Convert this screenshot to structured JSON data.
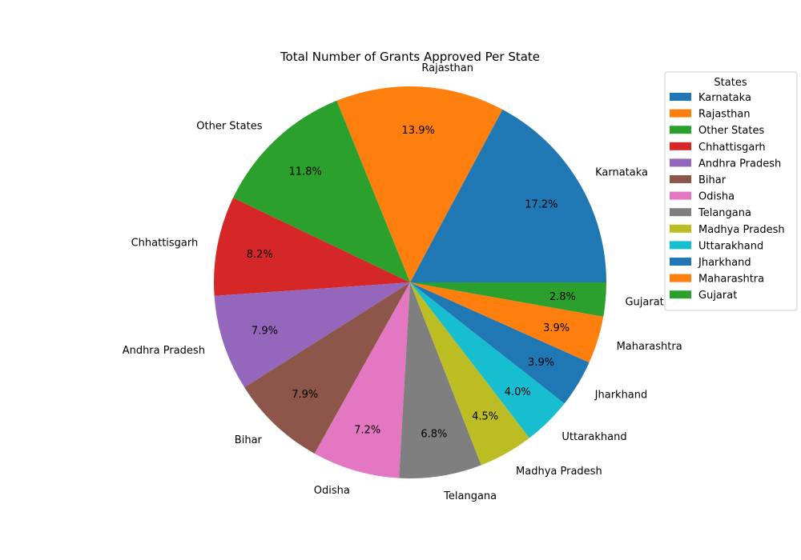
{
  "chart_data": {
    "type": "pie",
    "title": "Total Number of Grants Approved Per State",
    "legend_title": "States",
    "legend_position": "right",
    "start_angle_deg": 0,
    "direction": "counterclockwise",
    "slices": [
      {
        "label": "Karnataka",
        "value": 17.2,
        "pct_label": "17.2%",
        "color": "#1f77b4"
      },
      {
        "label": "Rajasthan",
        "value": 13.9,
        "pct_label": "13.9%",
        "color": "#ff7f0e"
      },
      {
        "label": "Other States",
        "value": 11.8,
        "pct_label": "11.8%",
        "color": "#2ca02c"
      },
      {
        "label": "Chhattisgarh",
        "value": 8.2,
        "pct_label": "8.2%",
        "color": "#d62728"
      },
      {
        "label": "Andhra Pradesh",
        "value": 7.9,
        "pct_label": "7.9%",
        "color": "#9467bd"
      },
      {
        "label": "Bihar",
        "value": 7.9,
        "pct_label": "7.9%",
        "color": "#8c564b"
      },
      {
        "label": "Odisha",
        "value": 7.2,
        "pct_label": "7.2%",
        "color": "#e377c2"
      },
      {
        "label": "Telangana",
        "value": 6.8,
        "pct_label": "6.8%",
        "color": "#7f7f7f"
      },
      {
        "label": "Madhya Pradesh",
        "value": 4.5,
        "pct_label": "4.5%",
        "color": "#bcbd22"
      },
      {
        "label": "Uttarakhand",
        "value": 4.0,
        "pct_label": "4.0%",
        "color": "#17becf"
      },
      {
        "label": "Jharkhand",
        "value": 3.9,
        "pct_label": "3.9%",
        "color": "#1f77b4"
      },
      {
        "label": "Maharashtra",
        "value": 3.9,
        "pct_label": "3.9%",
        "color": "#ff7f0e"
      },
      {
        "label": "Gujarat",
        "value": 2.8,
        "pct_label": "2.8%",
        "color": "#2ca02c"
      }
    ]
  }
}
